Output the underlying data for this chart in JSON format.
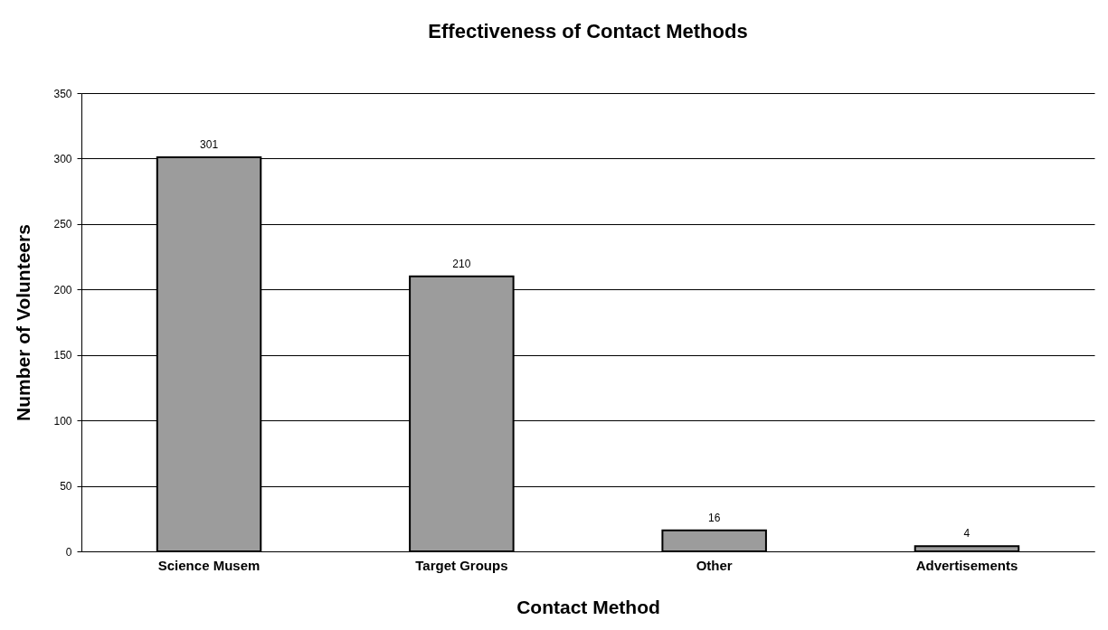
{
  "chart_data": {
    "type": "bar",
    "title": "Effectiveness of Contact Methods",
    "xlabel": "Contact Method",
    "ylabel": "Number of Volunteers",
    "categories": [
      "Science Musem",
      "Target Groups",
      "Other",
      "Advertisements"
    ],
    "values": [
      301,
      210,
      16,
      4
    ],
    "color": "#9c9c9c",
    "ylim": [
      0,
      350
    ],
    "yticks": [
      0,
      50,
      100,
      150,
      200,
      250,
      300,
      350
    ],
    "grid": "y",
    "data_labels": true
  }
}
